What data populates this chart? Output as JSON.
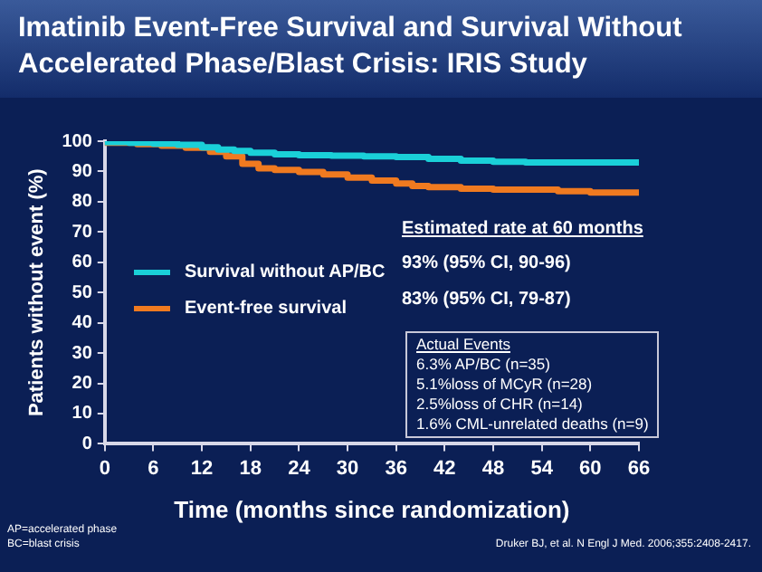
{
  "chart_data": {
    "type": "step",
    "title": "Imatinib Event-Free Survival and Survival Without Accelerated Phase/Blast Crisis: IRIS Study",
    "xlabel": "Time (months since randomization)",
    "ylabel": "Patients without event (%)",
    "xlim": [
      0,
      66
    ],
    "xticks": [
      0,
      6,
      12,
      18,
      24,
      30,
      36,
      42,
      48,
      54,
      60,
      66
    ],
    "ylim": [
      0,
      100
    ],
    "yticks": [
      0,
      10,
      20,
      30,
      40,
      50,
      60,
      70,
      80,
      90,
      100
    ],
    "grid": false,
    "legend": "left",
    "series": [
      {
        "name": "Survival without AP/BC",
        "color": "#1ad0d8",
        "x": [
          0,
          3,
          6,
          9,
          12,
          14,
          16,
          18,
          21,
          24,
          28,
          32,
          36,
          40,
          44,
          48,
          52,
          56,
          60,
          66
        ],
        "values": [
          100,
          99.7,
          99.5,
          99.2,
          98.8,
          98,
          97.2,
          96.8,
          96.2,
          95.7,
          95.4,
          95.2,
          95,
          94.8,
          94.2,
          93.6,
          93.2,
          93,
          93,
          93
        ]
      },
      {
        "name": "Event-free survival",
        "color": "#f07a20",
        "x": [
          0,
          4,
          7,
          10,
          13,
          15,
          17,
          19,
          21,
          24,
          27,
          30,
          33,
          36,
          38,
          40,
          44,
          48,
          52,
          56,
          60,
          62,
          66
        ],
        "values": [
          100,
          99.5,
          99,
          98.5,
          97.8,
          96.5,
          95,
          92.5,
          91,
          90.5,
          89.8,
          89,
          88,
          87,
          86,
          85.2,
          84.8,
          84.3,
          84,
          84,
          83.5,
          83,
          83
        ]
      }
    ],
    "annotations": [
      "Estimated rate at 60 months",
      "93% (95% CI, 90-96)",
      "83% (95% CI, 79-87)",
      "Actual Events",
      "6.3% AP/BC  (n=35)",
      "5.1%loss of MCyR (n=28)",
      "2.5%loss of CHR (n=14)",
      "1.6% CML-unrelated deaths (n=9)",
      "AP=accelerated phase",
      "BC=blast crisis",
      "Druker BJ, et al. N Engl J Med. 2006;355:2408-2417."
    ]
  }
}
